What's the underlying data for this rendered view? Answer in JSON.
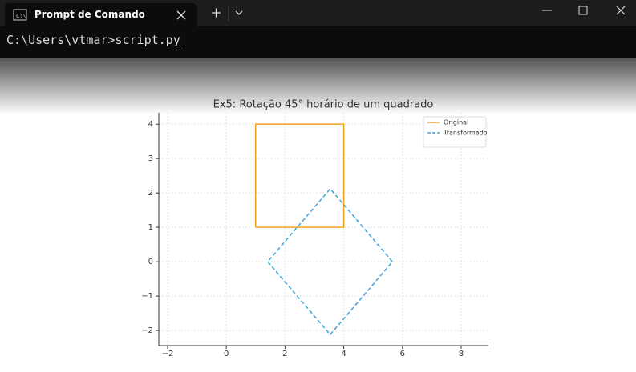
{
  "window": {
    "tab_title": "Prompt de Comando",
    "command_line": "C:\\Users\\vtmar>script.py"
  },
  "chart_data": {
    "type": "line",
    "title": "Ex5: Rotação 45° horário de um quadrado",
    "series": [
      {
        "name": "Original",
        "color": "#f0a020",
        "linestyle": "solid",
        "x": [
          1,
          4,
          4,
          1,
          1
        ],
        "values": [
          1,
          1,
          4,
          4,
          1
        ]
      },
      {
        "name": "Transformado",
        "color": "#3fa6dc",
        "linestyle": "dashed",
        "x": [
          1.41,
          3.54,
          5.66,
          3.54,
          1.41
        ],
        "values": [
          0,
          -2.12,
          0,
          2.12,
          0
        ]
      }
    ],
    "xlim": [
      -2.3,
      8.93
    ],
    "ylim": [
      -2.44,
      4.33
    ],
    "xticks": [
      {
        "value": -2,
        "label": "−2"
      },
      0,
      2,
      4,
      6,
      8
    ],
    "yticks": [
      {
        "value": -2,
        "label": "−2"
      },
      {
        "value": -1,
        "label": "−1"
      },
      0,
      1,
      2,
      3,
      4
    ],
    "grid": true,
    "legend": "upper right"
  }
}
